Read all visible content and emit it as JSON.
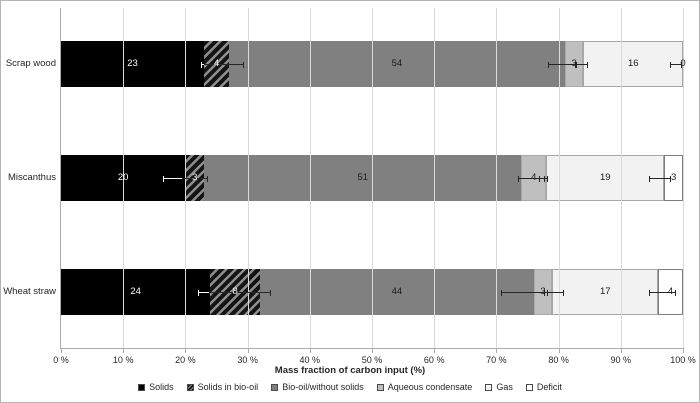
{
  "frame": {
    "background": "#ffffff",
    "border_color": "#b3b3b3"
  },
  "chart_data": {
    "type": "bar",
    "orientation": "horizontal",
    "stacked": true,
    "title": "",
    "xlabel": "Mass fraction of carbon input (%)",
    "ylabel": "",
    "xlim": [
      0,
      100
    ],
    "grid": true,
    "gridline_color": "#d9d9d9",
    "axis_line_color": "#adadad",
    "legend_position": "bottom",
    "x_ticks": [
      "0 %",
      "10 %",
      "20 %",
      "30 %",
      "40 %",
      "50 %",
      "60 %",
      "70 %",
      "80 %",
      "90 %",
      "100 %"
    ],
    "categories": [
      "Scrap wood",
      "Miscanthus",
      "Wheat straw"
    ],
    "series": [
      {
        "name": "Solids",
        "values": [
          23,
          20,
          24
        ],
        "color": "#000000",
        "pattern": "solid",
        "label_color": "#ffffff",
        "border": ""
      },
      {
        "name": "Solids in bio-oil",
        "values": [
          4,
          3,
          8
        ],
        "color": "#141414",
        "pattern": "hatch",
        "hatch_color": "#8f8f8f",
        "label_color": "#f5f5f5",
        "border": ""
      },
      {
        "name": "Bio-oil/without solids",
        "values": [
          54,
          51,
          44
        ],
        "color": "#808080",
        "pattern": "solid",
        "label_color": "#1a1a1a",
        "border": ""
      },
      {
        "name": "Aqueous condensate",
        "values": [
          3,
          4,
          3
        ],
        "color": "#bfbfbf",
        "pattern": "solid",
        "label_color": "#1a1a1a",
        "border": "#a9a9a9"
      },
      {
        "name": "Gas",
        "values": [
          16,
          19,
          17
        ],
        "color": "#f2f2f2",
        "pattern": "solid",
        "label_color": "#1a1a1a",
        "border": "#a6a6a6"
      },
      {
        "name": "Deficit",
        "values": [
          0,
          3,
          4
        ],
        "color": "#ffffff",
        "pattern": "solid",
        "label_color": "#1a1a1a",
        "border": "#7f7f7f"
      }
    ],
    "error_bars": [
      [
        {
          "lo": 22.5,
          "hi": 23.0,
          "color": "#ffffff",
          "caps": "left"
        },
        {
          "lo": 23.0,
          "hi": 29.4,
          "color": "#262626",
          "caps": "right"
        },
        {
          "lo": 78.3,
          "hi": 83.0,
          "color": "#262626",
          "caps": "both"
        },
        {
          "lo": 82.6,
          "hi": 84.7,
          "color": "#262626",
          "caps": "both"
        },
        {
          "lo": 97.9,
          "hi": 99.8,
          "color": "#262626",
          "caps": "both"
        }
      ],
      [
        {
          "lo": 16.4,
          "hi": 19.4,
          "color": "#ffffff",
          "caps": "left"
        },
        {
          "lo": 19.4,
          "hi": 23.6,
          "color": "#262626",
          "caps": "right"
        },
        {
          "lo": 73.4,
          "hi": 77.8,
          "color": "#262626",
          "caps": "both"
        },
        {
          "lo": 76.9,
          "hi": 78.3,
          "color": "#262626",
          "caps": "both"
        },
        {
          "lo": 94.5,
          "hi": 98.1,
          "color": "#262626",
          "caps": "both"
        }
      ],
      [
        {
          "lo": 22.0,
          "hi": 23.8,
          "color": "#ffffff",
          "caps": "left"
        },
        {
          "lo": 23.8,
          "hi": 33.8,
          "color": "#262626",
          "caps": "right"
        },
        {
          "lo": 70.7,
          "hi": 78.3,
          "color": "#262626",
          "caps": "both"
        },
        {
          "lo": 77.7,
          "hi": 80.9,
          "color": "#262626",
          "caps": "both"
        },
        {
          "lo": 94.5,
          "hi": 98.9,
          "color": "#262626",
          "caps": "both"
        }
      ]
    ]
  }
}
